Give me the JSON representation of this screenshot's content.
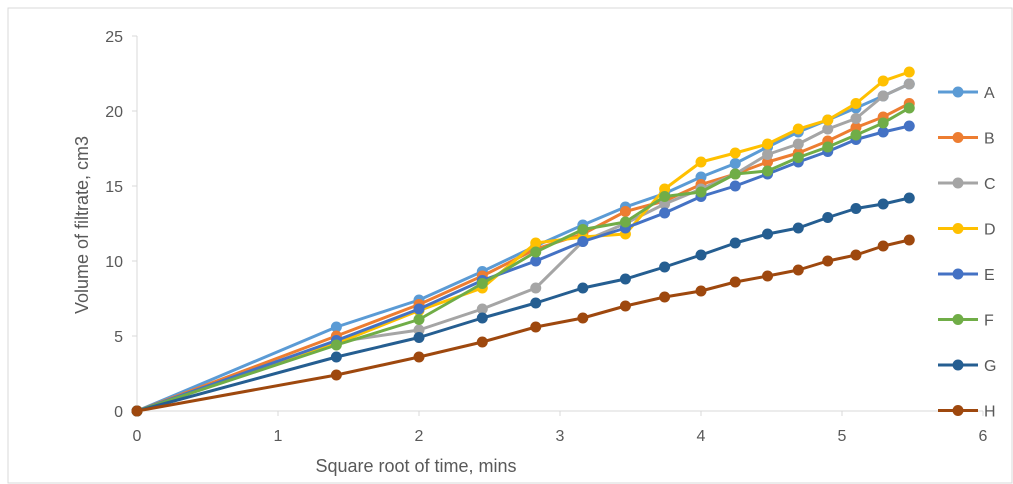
{
  "chart_data": {
    "type": "line",
    "xlabel": "Square root of time, mins",
    "ylabel": "Volume of filtrate, cm3",
    "xlim": [
      0,
      6
    ],
    "ylim": [
      0,
      25
    ],
    "x_ticks": [
      "0",
      "1",
      "2",
      "3",
      "4",
      "5",
      "6"
    ],
    "y_ticks": [
      "0",
      "5",
      "10",
      "15",
      "20",
      "25"
    ],
    "grid": false,
    "legend_position": "right",
    "x": [
      0,
      1.414,
      2.0,
      2.449,
      2.828,
      3.162,
      3.464,
      3.742,
      4.0,
      4.243,
      4.472,
      4.69,
      4.899,
      5.099,
      5.292,
      5.477
    ],
    "series": [
      {
        "name": "A",
        "color": "#5B9BD5",
        "values": [
          0,
          5.6,
          7.4,
          9.3,
          11.0,
          12.4,
          13.6,
          14.5,
          15.6,
          16.5,
          17.6,
          18.6,
          19.4,
          20.2,
          21.0,
          21.8
        ]
      },
      {
        "name": "B",
        "color": "#ED7D31",
        "values": [
          0,
          5.0,
          7.1,
          9.0,
          10.8,
          11.8,
          13.3,
          14.0,
          15.1,
          15.8,
          16.6,
          17.2,
          18.0,
          18.9,
          19.6,
          20.5
        ]
      },
      {
        "name": "C",
        "color": "#A5A5A5",
        "values": [
          0,
          4.6,
          5.4,
          6.8,
          8.2,
          11.3,
          12.5,
          13.8,
          14.8,
          15.8,
          17.1,
          17.8,
          18.8,
          19.5,
          21.0,
          21.8
        ]
      },
      {
        "name": "D",
        "color": "#FFC000",
        "values": [
          0,
          4.5,
          6.7,
          8.2,
          11.2,
          11.6,
          11.8,
          14.8,
          16.6,
          17.2,
          17.8,
          18.8,
          19.4,
          20.5,
          22.0,
          22.6
        ]
      },
      {
        "name": "E",
        "color": "#4472C4",
        "values": [
          0,
          4.7,
          6.8,
          8.7,
          10.0,
          11.3,
          12.2,
          13.2,
          14.3,
          15.0,
          15.8,
          16.6,
          17.3,
          18.1,
          18.6,
          19.0
        ]
      },
      {
        "name": "F",
        "color": "#70AD47",
        "values": [
          0,
          4.4,
          6.1,
          8.5,
          10.6,
          12.1,
          12.6,
          14.3,
          14.6,
          15.8,
          16.0,
          16.9,
          17.6,
          18.4,
          19.2,
          20.2
        ]
      },
      {
        "name": "G",
        "color": "#255E91",
        "values": [
          0,
          3.6,
          4.9,
          6.2,
          7.2,
          8.2,
          8.8,
          9.6,
          10.4,
          11.2,
          11.8,
          12.2,
          12.9,
          13.5,
          13.8,
          14.2
        ]
      },
      {
        "name": "H",
        "color": "#9E480E",
        "values": [
          0,
          2.4,
          3.6,
          4.6,
          5.6,
          6.2,
          7.0,
          7.6,
          8.0,
          8.6,
          9.0,
          9.4,
          10.0,
          10.4,
          11.0,
          11.4
        ]
      }
    ]
  }
}
